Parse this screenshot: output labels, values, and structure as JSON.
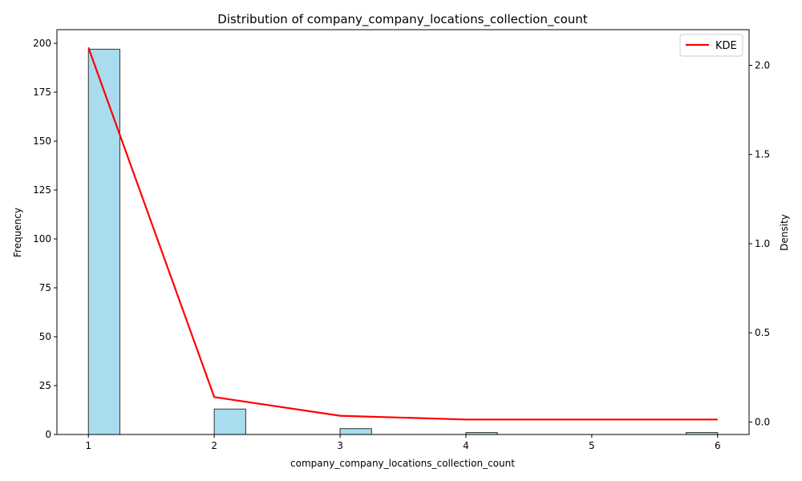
{
  "chart_data": {
    "type": "bar",
    "title": "Distribution of company_company_locations_collection_count",
    "xlabel": "company_company_locations_collection_count",
    "ylabel": "Frequency",
    "y2label": "Density",
    "xlim": [
      0.75,
      6.25
    ],
    "ylim": [
      0,
      207
    ],
    "y2lim": [
      -0.07,
      2.2
    ],
    "x_ticks": [
      "1",
      "2",
      "3",
      "4",
      "5",
      "6"
    ],
    "y_ticks": [
      "0",
      "25",
      "50",
      "75",
      "100",
      "125",
      "150",
      "175",
      "200"
    ],
    "y2_ticks": [
      "0.0",
      "0.5",
      "1.0",
      "1.5",
      "2.0"
    ],
    "bins": [
      {
        "start": 1.0,
        "end": 1.25,
        "count": 197
      },
      {
        "start": 2.0,
        "end": 2.25,
        "count": 13
      },
      {
        "start": 3.0,
        "end": 3.25,
        "count": 3
      },
      {
        "start": 4.0,
        "end": 4.25,
        "count": 1
      },
      {
        "start": 5.75,
        "end": 6.0,
        "count": 1
      }
    ],
    "series": [
      {
        "name": "KDE",
        "x": [
          1,
          2,
          3,
          4,
          5,
          6
        ],
        "values": [
          2.1,
          0.14,
          0.035,
          0.014,
          0.014,
          0.014
        ]
      }
    ],
    "legend": {
      "position": "top-right",
      "entries": [
        "KDE"
      ]
    },
    "bar_color": "#a8dcee",
    "bar_edge_color": "#333333",
    "line_color": "#ff0000",
    "grid": false
  }
}
